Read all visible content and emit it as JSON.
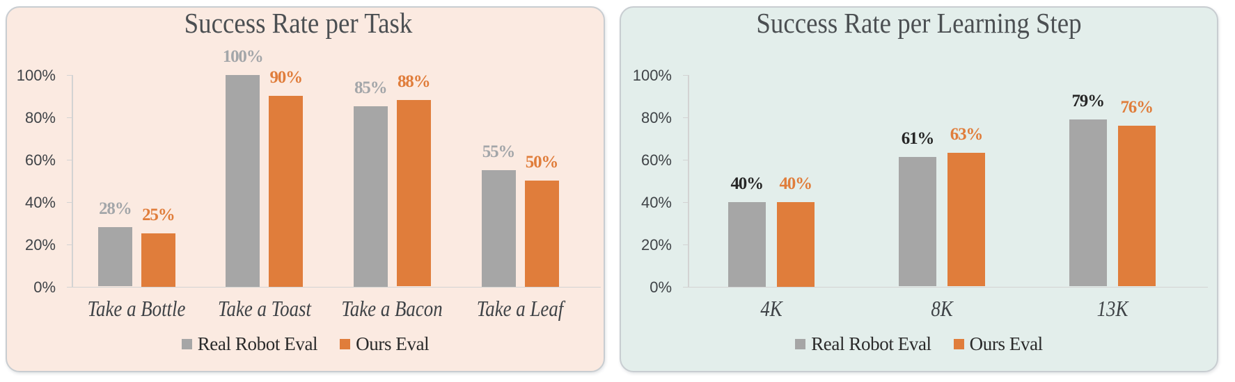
{
  "page": {
    "background": "#ffffff"
  },
  "chart_data": [
    {
      "type": "bar",
      "title": "Success Rate per Task",
      "panel_background": "#FBEAE1",
      "panel_border_color": "#C8CDD1",
      "categories": [
        "Take a Bottle",
        "Take a Toast",
        "Take a Bacon",
        "Take a Leaf"
      ],
      "series": [
        {
          "name": "Real Robot Eval",
          "color": "#A6A6A6",
          "label_color": "#A3A6A9",
          "values": [
            28,
            100,
            85,
            55
          ],
          "labels": [
            "28%",
            "100%",
            "85%",
            "55%"
          ]
        },
        {
          "name": "Ours Eval",
          "color": "#E07D3B",
          "label_color": "#E07D3B",
          "values": [
            25,
            90,
            88,
            50
          ],
          "labels": [
            "25%",
            "90%",
            "88%",
            "50%"
          ]
        }
      ],
      "xlabel": "",
      "ylabel": "",
      "ylim": [
        0,
        100
      ],
      "y_ticks": [
        "0%",
        "20%",
        "40%",
        "60%",
        "80%",
        "100%"
      ],
      "grid": false,
      "legend_position": "bottom",
      "legend": [
        "Real Robot Eval",
        "Ours Eval"
      ]
    },
    {
      "type": "bar",
      "title": "Success Rate per Learning Step",
      "panel_background": "#E3EEEB",
      "panel_border_color": "#C8CDD1",
      "categories": [
        "4K",
        "8K",
        "13K"
      ],
      "series": [
        {
          "name": "Real Robot Eval",
          "color": "#A6A6A6",
          "label_color": "#262626",
          "values": [
            40,
            61,
            79
          ],
          "labels": [
            "40%",
            "61%",
            "79%"
          ]
        },
        {
          "name": "Ours Eval",
          "color": "#E07D3B",
          "label_color": "#E07D3B",
          "values": [
            40,
            63,
            76
          ],
          "labels": [
            "40%",
            "63%",
            "76%"
          ]
        }
      ],
      "xlabel": "",
      "ylabel": "",
      "ylim": [
        0,
        100
      ],
      "y_ticks": [
        "0%",
        "20%",
        "40%",
        "60%",
        "80%",
        "100%"
      ],
      "grid": false,
      "legend_position": "bottom",
      "legend": [
        "Real Robot Eval",
        "Ours Eval"
      ]
    }
  ]
}
